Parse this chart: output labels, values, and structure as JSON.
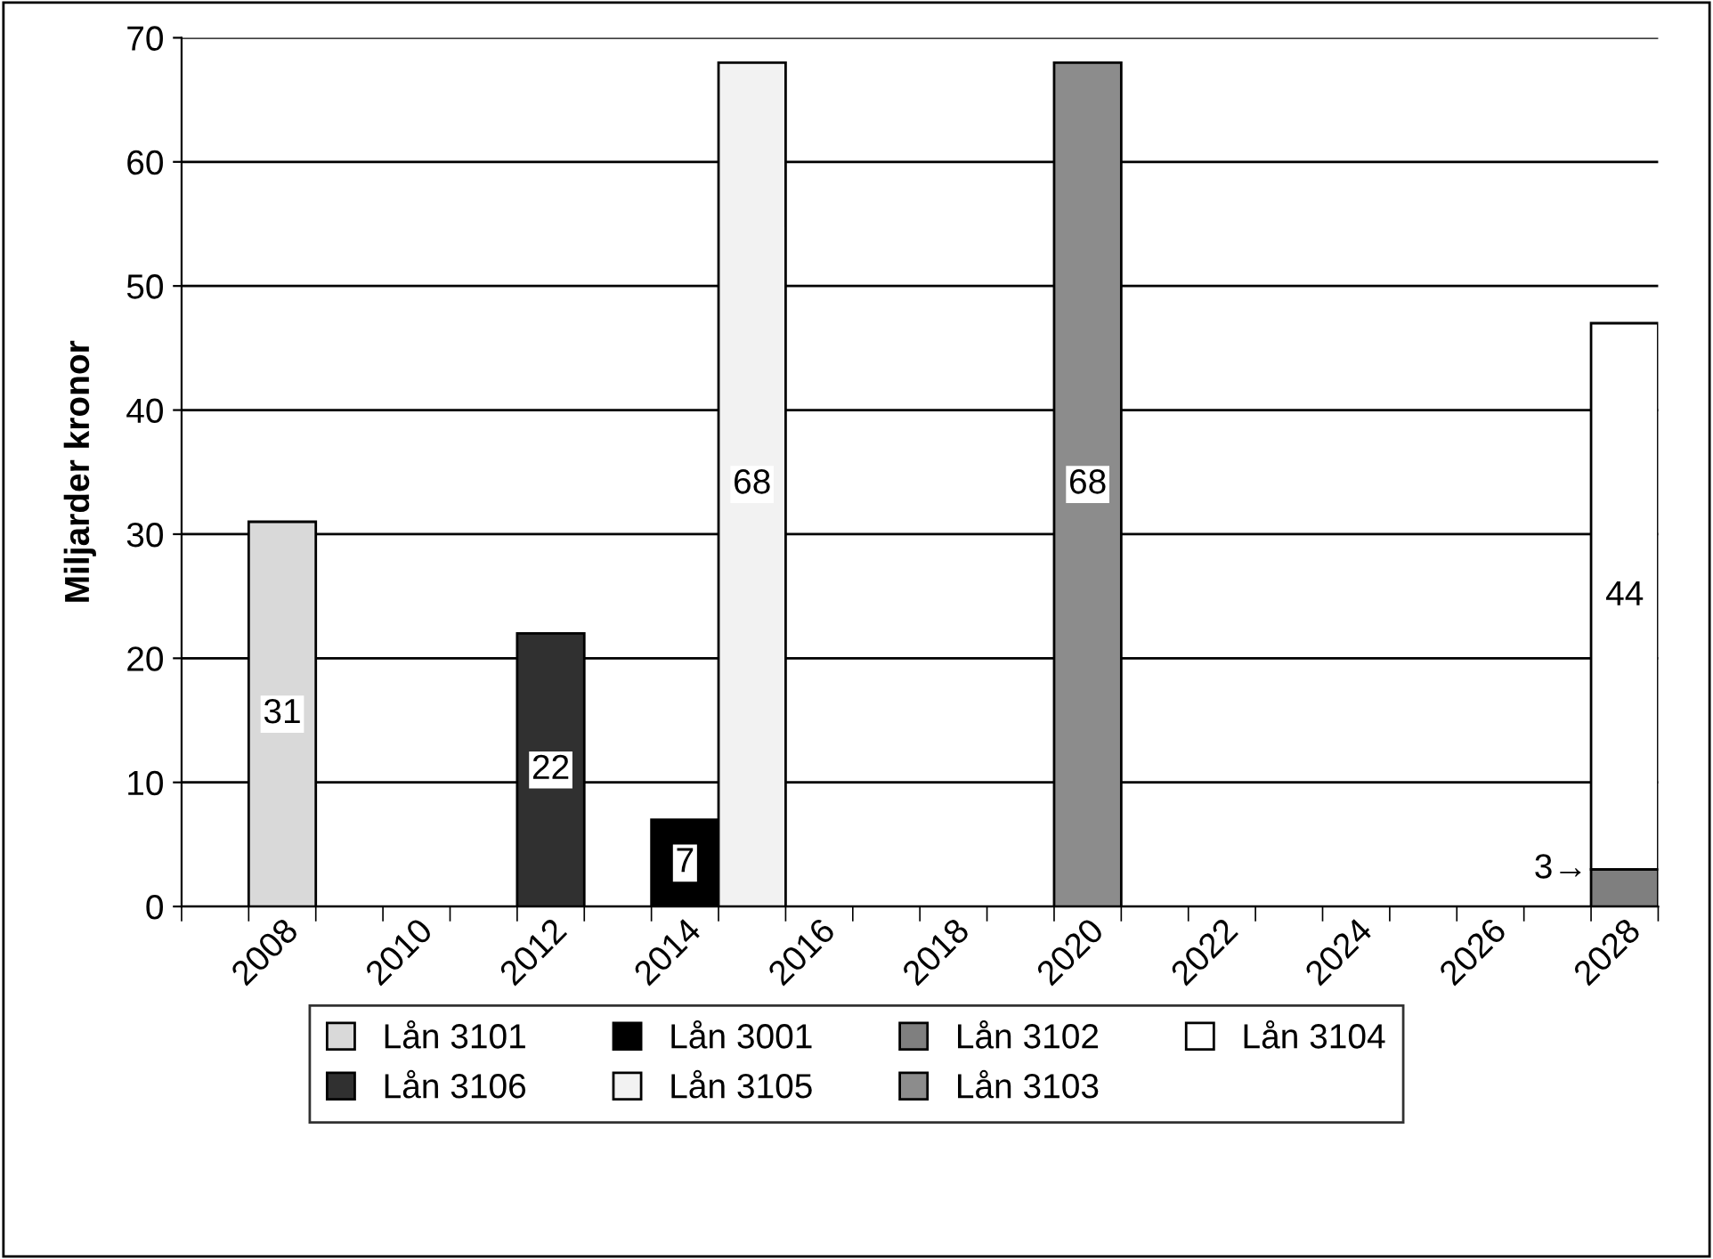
{
  "chart_data": {
    "type": "bar",
    "stacked": true,
    "ylabel": "Miljarder kronor",
    "categories": [
      null,
      "2008",
      null,
      "2010",
      null,
      "2012",
      null,
      "2014",
      null,
      "2016",
      null,
      "2018",
      null,
      "2020",
      null,
      "2022",
      null,
      "2024",
      null,
      "2026",
      null,
      "2028"
    ],
    "series": [
      {
        "name": "Lån 3101",
        "color": "#d9d9d9",
        "values": [
          null,
          31,
          null,
          null,
          null,
          null,
          null,
          null,
          null,
          null,
          null,
          null,
          null,
          null,
          null,
          null,
          null,
          null,
          null,
          null,
          null,
          null
        ],
        "value_labels": [
          null,
          "31",
          null,
          null,
          null,
          null,
          null,
          null,
          null,
          null,
          null,
          null,
          null,
          null,
          null,
          null,
          null,
          null,
          null,
          null,
          null,
          null
        ]
      },
      {
        "name": "Lån 3106",
        "color": "#303030",
        "values": [
          null,
          null,
          null,
          null,
          null,
          22,
          null,
          null,
          null,
          null,
          null,
          null,
          null,
          null,
          null,
          null,
          null,
          null,
          null,
          null,
          null,
          null
        ],
        "value_labels": [
          null,
          null,
          null,
          null,
          null,
          "22",
          null,
          null,
          null,
          null,
          null,
          null,
          null,
          null,
          null,
          null,
          null,
          null,
          null,
          null,
          null,
          null
        ]
      },
      {
        "name": "Lån 3001",
        "color": "#000000",
        "values": [
          null,
          null,
          null,
          null,
          null,
          null,
          null,
          7,
          null,
          null,
          null,
          null,
          null,
          null,
          null,
          null,
          null,
          null,
          null,
          null,
          null,
          null
        ],
        "value_labels": [
          null,
          null,
          null,
          null,
          null,
          null,
          null,
          "7",
          null,
          null,
          null,
          null,
          null,
          null,
          null,
          null,
          null,
          null,
          null,
          null,
          null,
          null
        ]
      },
      {
        "name": "Lån 3105",
        "color": "#f2f2f2",
        "values": [
          null,
          null,
          null,
          null,
          null,
          null,
          null,
          null,
          68,
          null,
          null,
          null,
          null,
          null,
          null,
          null,
          null,
          null,
          null,
          null,
          null,
          null
        ],
        "value_labels": [
          null,
          null,
          null,
          null,
          null,
          null,
          null,
          null,
          "68",
          null,
          null,
          null,
          null,
          null,
          null,
          null,
          null,
          null,
          null,
          null,
          null,
          null
        ]
      },
      {
        "name": "Lån 3102",
        "color": "#7f7f7f",
        "values": [
          null,
          null,
          null,
          null,
          null,
          null,
          null,
          null,
          null,
          null,
          null,
          null,
          null,
          null,
          null,
          null,
          null,
          null,
          null,
          null,
          null,
          3
        ],
        "value_labels": [
          null,
          null,
          null,
          null,
          null,
          null,
          null,
          null,
          null,
          null,
          null,
          null,
          null,
          null,
          null,
          null,
          null,
          null,
          null,
          null,
          null,
          null
        ]
      },
      {
        "name": "Lån 3103",
        "color": "#8c8c8c",
        "values": [
          null,
          null,
          null,
          null,
          null,
          null,
          null,
          null,
          null,
          null,
          null,
          null,
          null,
          68,
          null,
          null,
          null,
          null,
          null,
          null,
          null,
          null
        ],
        "value_labels": [
          null,
          null,
          null,
          null,
          null,
          null,
          null,
          null,
          null,
          null,
          null,
          null,
          null,
          "68",
          null,
          null,
          null,
          null,
          null,
          null,
          null,
          null
        ]
      },
      {
        "name": "Lån 3104",
        "color": "#ffffff",
        "values": [
          null,
          null,
          null,
          null,
          null,
          null,
          null,
          null,
          null,
          null,
          null,
          null,
          null,
          null,
          null,
          null,
          null,
          null,
          null,
          null,
          null,
          44
        ],
        "value_labels": [
          null,
          null,
          null,
          null,
          null,
          null,
          null,
          null,
          null,
          null,
          null,
          null,
          null,
          null,
          null,
          null,
          null,
          null,
          null,
          null,
          null,
          "44"
        ]
      }
    ],
    "annotations": [
      {
        "text": "3→",
        "x": "2028",
        "y": 3
      }
    ],
    "ylim": [
      0,
      70
    ],
    "yticks": [
      0,
      10,
      20,
      30,
      40,
      50,
      60,
      70
    ],
    "grid": "y",
    "legend": "bottom"
  }
}
